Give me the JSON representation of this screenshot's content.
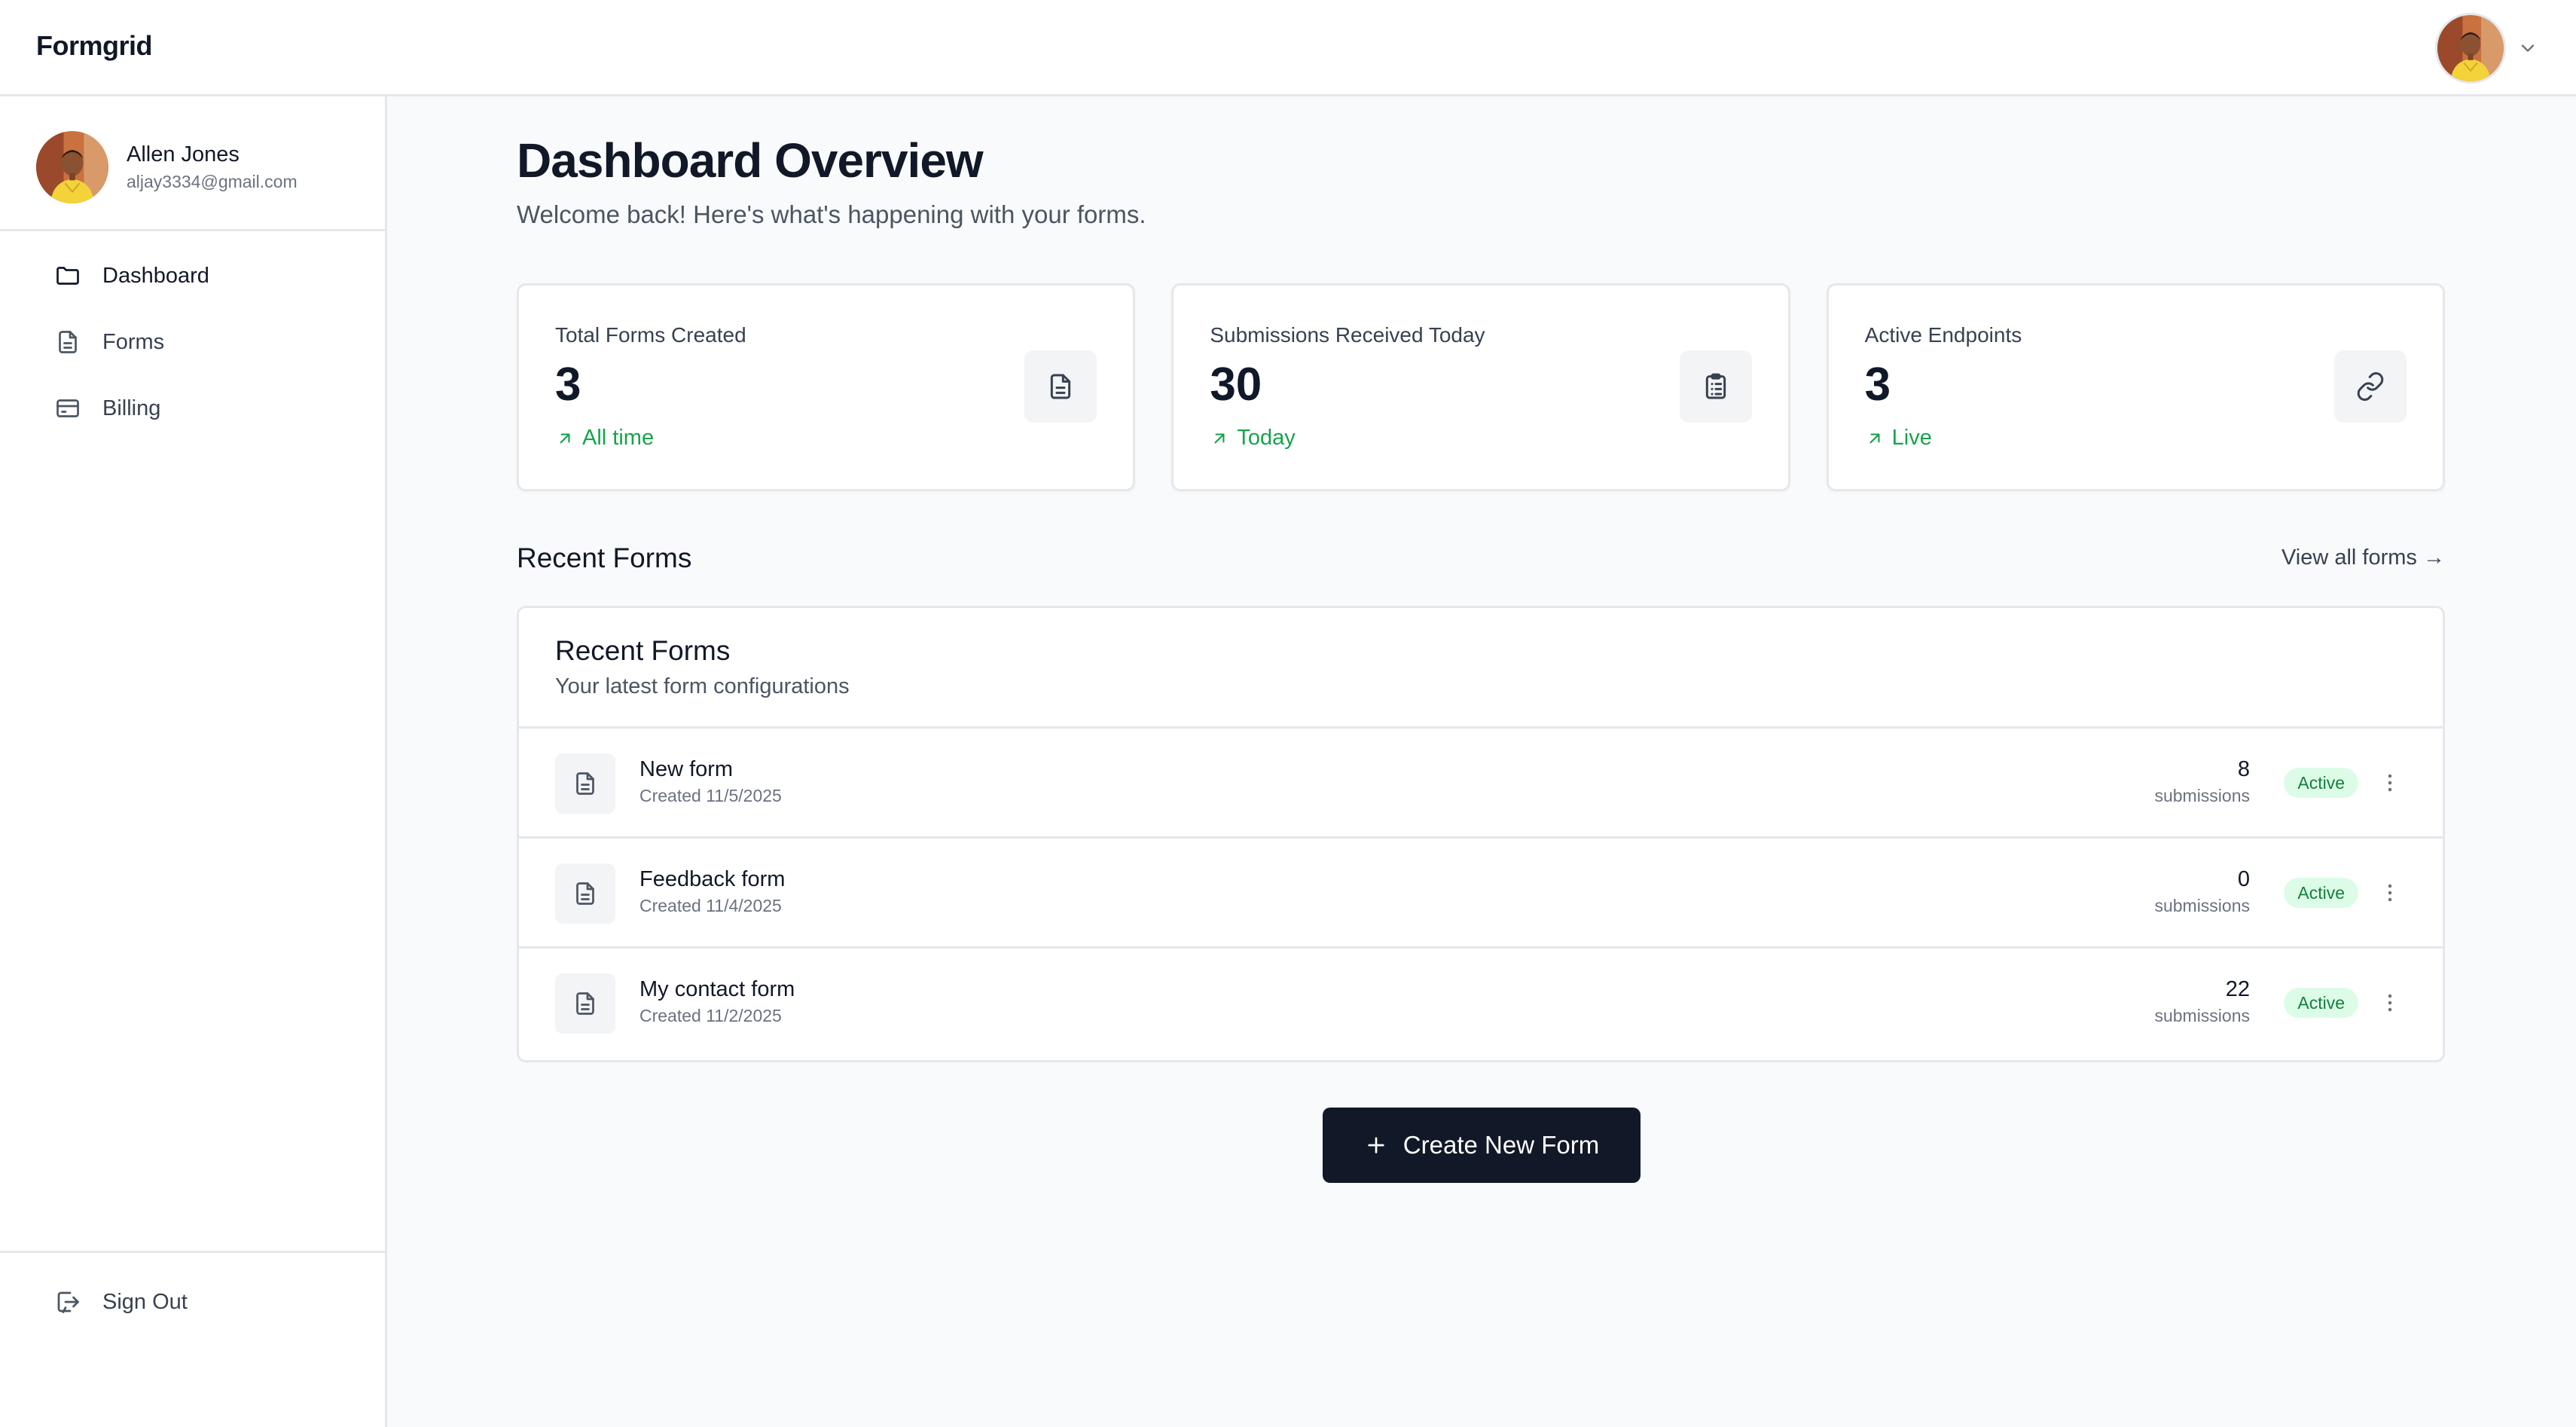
{
  "app": {
    "brand": "Formgrid"
  },
  "user": {
    "name": "Allen Jones",
    "email": "aljay3334@gmail.com"
  },
  "sidebar": {
    "items": [
      {
        "label": "Dashboard",
        "icon": "folder-icon",
        "active": true
      },
      {
        "label": "Forms",
        "icon": "file-icon",
        "active": false
      },
      {
        "label": "Billing",
        "icon": "credit-card-icon",
        "active": false
      }
    ],
    "signout_label": "Sign Out"
  },
  "page": {
    "title": "Dashboard Overview",
    "subtitle": "Welcome back! Here's what's happening with your forms."
  },
  "stats": [
    {
      "label": "Total Forms Created",
      "value": "3",
      "trend": "All time",
      "icon": "file-text-icon"
    },
    {
      "label": "Submissions Received Today",
      "value": "30",
      "trend": "Today",
      "icon": "clipboard-list-icon"
    },
    {
      "label": "Active Endpoints",
      "value": "3",
      "trend": "Live",
      "icon": "link-icon"
    }
  ],
  "recent": {
    "section_title": "Recent Forms",
    "view_all_label": "View all forms →",
    "card_title": "Recent Forms",
    "card_subtitle": "Your latest form configurations",
    "forms": [
      {
        "name": "New form",
        "created": "Created 11/5/2025",
        "count": "8",
        "count_label": "submissions",
        "status": "Active"
      },
      {
        "name": "Feedback form",
        "created": "Created 11/4/2025",
        "count": "0",
        "count_label": "submissions",
        "status": "Active"
      },
      {
        "name": "My contact form",
        "created": "Created 11/2/2025",
        "count": "22",
        "count_label": "submissions",
        "status": "Active"
      }
    ]
  },
  "actions": {
    "create_label": "Create New Form"
  },
  "colors": {
    "primary": "#111827",
    "success": "#16a34a",
    "badge_bg": "#dcfce7",
    "badge_text": "#15803d",
    "border": "#e5e7eb",
    "background": "#f9fafb"
  }
}
